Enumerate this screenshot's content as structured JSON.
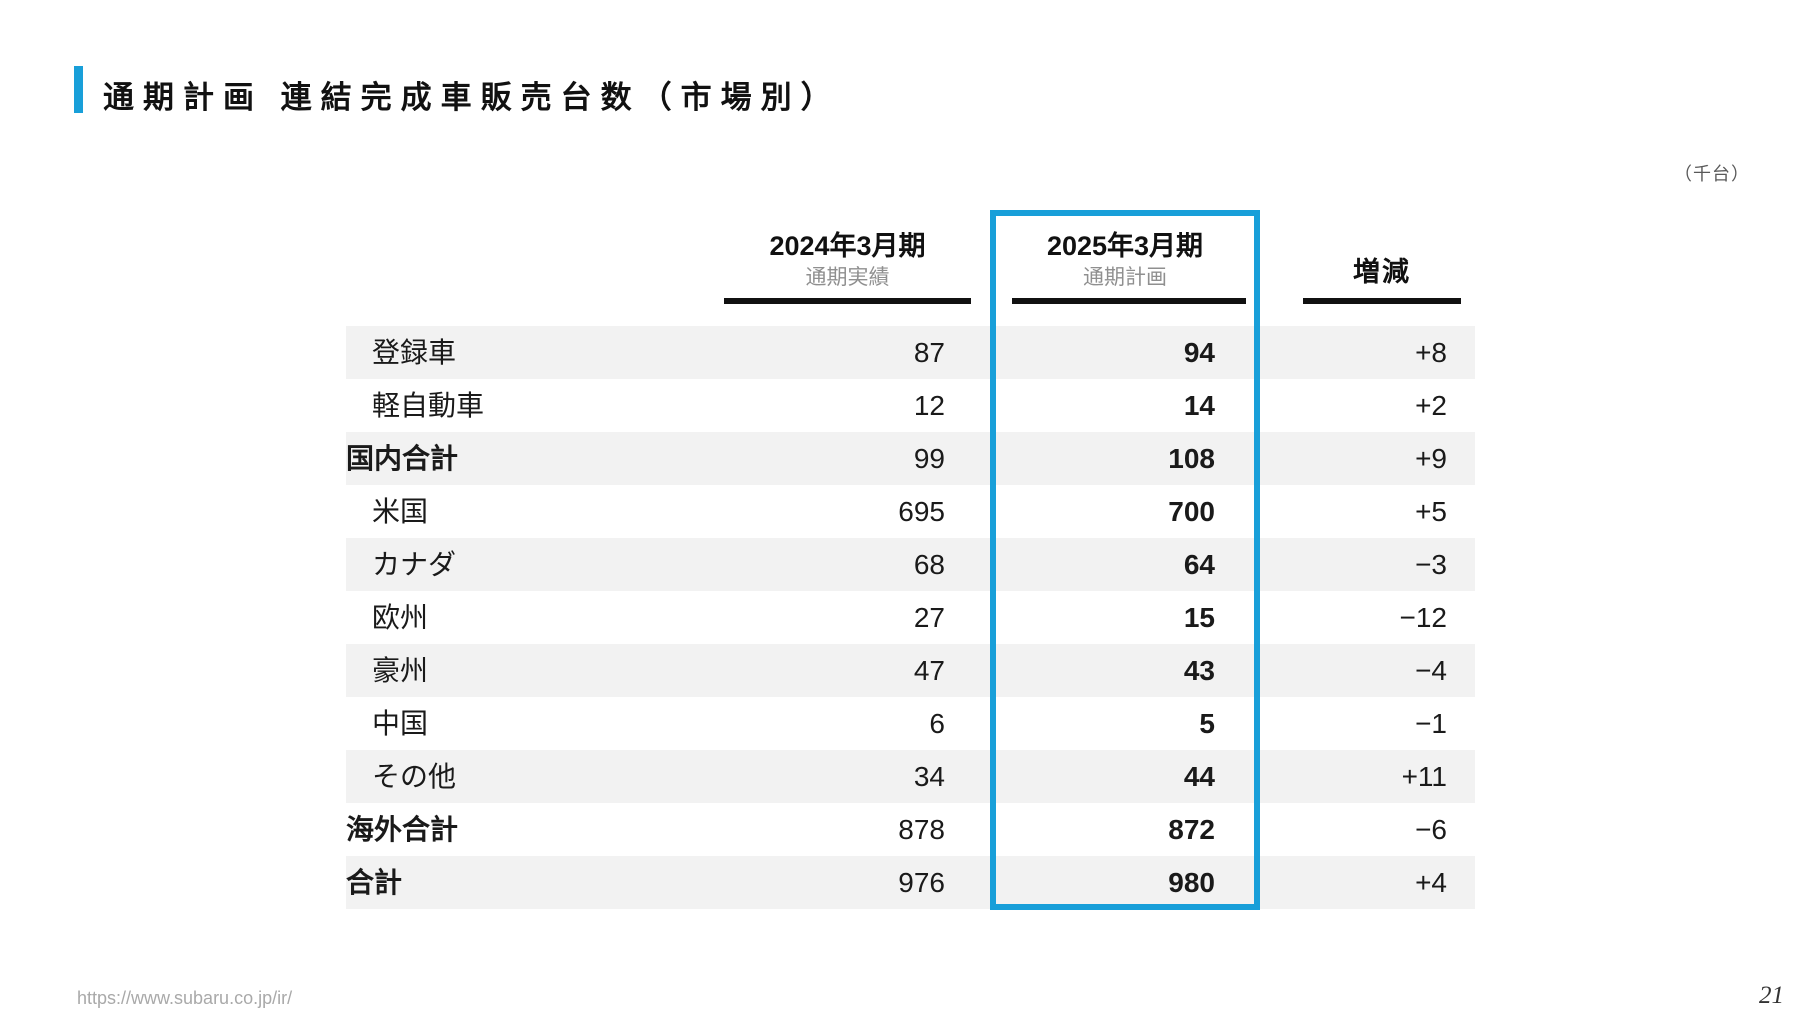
{
  "title": "通期計画 連結完成車販売台数（市場別）",
  "unit_label": "（千台）",
  "table": {
    "columns": [
      {
        "label": "2024年3月期",
        "sublabel": "通期実績"
      },
      {
        "label": "2025年3月期",
        "sublabel": "通期計画"
      },
      {
        "label": "増減"
      }
    ],
    "rows": [
      {
        "label": "登録車",
        "fy2024": "87",
        "fy2025": "94",
        "change": "+8"
      },
      {
        "label": "軽自動車",
        "fy2024": "12",
        "fy2025": "14",
        "change": "+2"
      },
      {
        "label": "国内合計",
        "fy2024": "99",
        "fy2025": "108",
        "change": "+9"
      },
      {
        "label": "米国",
        "fy2024": "695",
        "fy2025": "700",
        "change": "+5"
      },
      {
        "label": "カナダ",
        "fy2024": "68",
        "fy2025": "64",
        "change": "−3"
      },
      {
        "label": "欧州",
        "fy2024": "27",
        "fy2025": "15",
        "change": "−12"
      },
      {
        "label": "豪州",
        "fy2024": "47",
        "fy2025": "43",
        "change": "−4"
      },
      {
        "label": "中国",
        "fy2024": "6",
        "fy2025": "5",
        "change": "−1"
      },
      {
        "label": "その他",
        "fy2024": "34",
        "fy2025": "44",
        "change": "+11"
      },
      {
        "label": "海外合計",
        "fy2024": "878",
        "fy2025": "872",
        "change": "−6"
      },
      {
        "label": "合計",
        "fy2024": "976",
        "fy2025": "980",
        "change": "+4"
      }
    ]
  },
  "footer": {
    "url": "https://www.subaru.co.jp/ir/",
    "page_number": "21"
  },
  "colors": {
    "accent_blue": "#189FD9",
    "row_shade": "#F2F2F2",
    "header_sub_gray": "#8f8f8f",
    "underline_black": "#111111"
  }
}
